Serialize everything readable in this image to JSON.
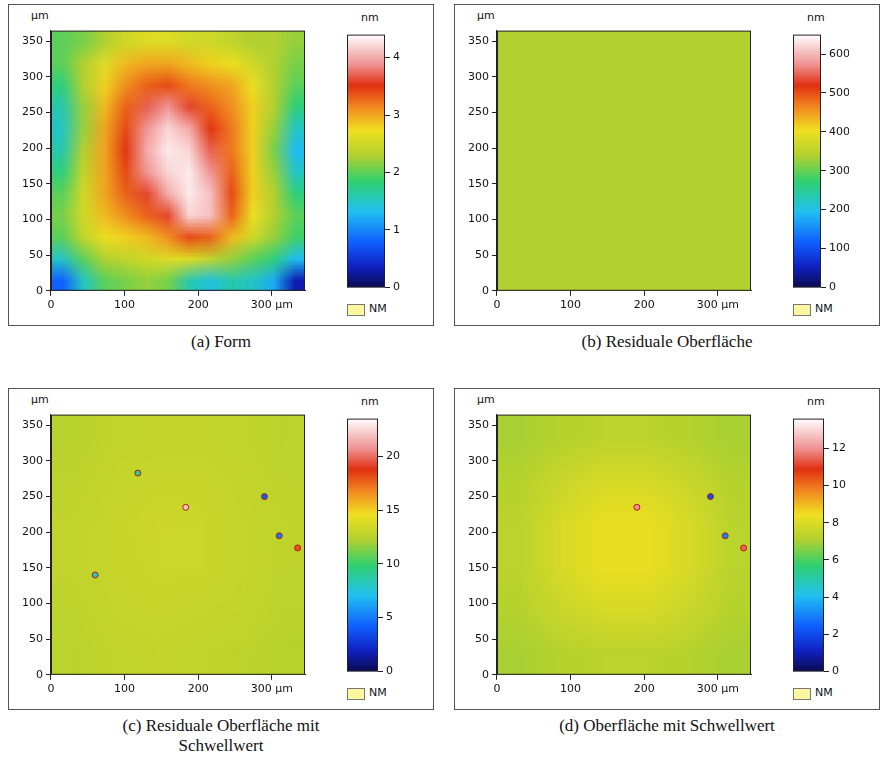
{
  "chart_data": [
    {
      "type": "heatmap",
      "title": "(a) Form",
      "ylabel": "µm",
      "grid": false,
      "xlim": [
        0,
        345
      ],
      "ylim": [
        0,
        365
      ],
      "xticks": [
        0,
        100,
        200,
        {
          "value": 300,
          "label": "300 µm"
        }
      ],
      "yticks": [
        0,
        50,
        100,
        150,
        200,
        250,
        300,
        350
      ],
      "heatmap": {
        "x": [
          14.4,
          43.1,
          71.9,
          100.6,
          129.4,
          158.1,
          186.9,
          215.6,
          244.4,
          273.1,
          301.9,
          330.6
        ],
        "y": [
          15.2,
          45.6,
          76.0,
          106.5,
          136.9,
          167.3,
          197.7,
          228.1,
          258.5,
          289.0,
          319.4,
          349.8
        ],
        "z": [
          [
            0.8,
            1.5,
            2.0,
            2.1,
            2.2,
            2.1,
            1.6,
            1.4,
            1.6,
            1.5,
            1.2,
            0.3
          ],
          [
            1.5,
            2.0,
            2.3,
            2.4,
            2.5,
            2.6,
            2.6,
            2.4,
            2.2,
            2.0,
            1.8,
            1.3
          ],
          [
            2.0,
            2.4,
            2.7,
            2.8,
            2.9,
            3.1,
            3.4,
            3.3,
            2.9,
            2.5,
            2.2,
            1.9
          ],
          [
            2.1,
            2.5,
            2.9,
            3.1,
            3.3,
            3.6,
            4.2,
            4.1,
            3.3,
            2.7,
            2.3,
            2.0
          ],
          [
            2.0,
            2.5,
            3.0,
            3.3,
            3.6,
            4.0,
            4.3,
            4.1,
            3.4,
            2.8,
            2.3,
            1.8
          ],
          [
            1.8,
            2.4,
            3.0,
            3.4,
            3.9,
            4.2,
            4.3,
            3.9,
            3.3,
            2.8,
            2.2,
            1.5
          ],
          [
            1.6,
            2.3,
            3.0,
            3.5,
            4.0,
            4.3,
            4.2,
            3.7,
            3.2,
            2.8,
            2.1,
            1.3
          ],
          [
            1.5,
            2.2,
            3.0,
            3.4,
            3.9,
            4.2,
            4.0,
            3.5,
            3.2,
            2.8,
            2.2,
            1.5
          ],
          [
            1.6,
            2.2,
            2.9,
            3.3,
            3.7,
            3.9,
            3.6,
            3.3,
            3.1,
            2.8,
            2.3,
            1.8
          ],
          [
            1.8,
            2.3,
            2.8,
            3.1,
            3.3,
            3.4,
            3.2,
            3.1,
            3.0,
            2.7,
            2.3,
            2.0
          ],
          [
            2.0,
            2.3,
            2.6,
            2.9,
            3.0,
            3.0,
            2.9,
            2.8,
            2.7,
            2.5,
            2.3,
            2.1
          ],
          [
            2.0,
            2.1,
            2.3,
            2.5,
            2.6,
            2.6,
            2.5,
            2.5,
            2.4,
            2.3,
            2.3,
            2.2
          ]
        ]
      },
      "colorbar": {
        "label": "nm",
        "range": [
          0,
          4.4
        ],
        "ticks": [
          0,
          1,
          2,
          3,
          4
        ]
      },
      "mask": {
        "label": "NM",
        "color": "#fbf7a0"
      }
    },
    {
      "type": "heatmap",
      "title": "(b) Residuale Oberfläche",
      "ylabel": "µm",
      "grid": false,
      "xlim": [
        0,
        345
      ],
      "ylim": [
        0,
        365
      ],
      "xticks": [
        0,
        100,
        200,
        {
          "value": 300,
          "label": "300 µm"
        }
      ],
      "yticks": [
        0,
        50,
        100,
        150,
        200,
        250,
        300,
        350
      ],
      "heatmap": {
        "x": [
          28.8,
          86.3,
          143.8,
          201.3,
          258.8,
          316.3
        ],
        "y": [
          30.4,
          91.3,
          152.1,
          212.9,
          273.8,
          334.6
        ],
        "z": [
          [
            340,
            340,
            340,
            340,
            340,
            340
          ],
          [
            340,
            340,
            340,
            340,
            340,
            340
          ],
          [
            340,
            340,
            340,
            340,
            340,
            340
          ],
          [
            340,
            340,
            340,
            340,
            340,
            340
          ],
          [
            340,
            340,
            340,
            340,
            340,
            340
          ],
          [
            340,
            340,
            340,
            340,
            340,
            340
          ]
        ]
      },
      "colorbar": {
        "label": "nm",
        "range": [
          0,
          650
        ],
        "ticks": [
          0,
          100,
          200,
          300,
          400,
          500,
          600
        ]
      },
      "mask": {
        "label": "NM",
        "color": "#fbf7a0"
      }
    },
    {
      "type": "heatmap",
      "title": "(c) Residuale Oberfläche mit Schwellwert",
      "ylabel": "µm",
      "grid": false,
      "xlim": [
        0,
        345
      ],
      "ylim": [
        0,
        365
      ],
      "xticks": [
        0,
        100,
        200,
        {
          "value": 300,
          "label": "300 µm"
        }
      ],
      "yticks": [
        0,
        50,
        100,
        150,
        200,
        250,
        300,
        350
      ],
      "heatmap": {
        "x": [
          28.8,
          86.3,
          143.8,
          201.3,
          258.8,
          316.3
        ],
        "y": [
          30.4,
          91.3,
          152.1,
          212.9,
          273.8,
          334.6
        ],
        "z": [
          [
            12.6,
            12.8,
            12.9,
            12.8,
            12.7,
            12.5
          ],
          [
            12.7,
            13.0,
            13.1,
            13.0,
            12.9,
            12.6
          ],
          [
            12.8,
            13.1,
            13.2,
            13.2,
            13.0,
            12.7
          ],
          [
            12.8,
            13.1,
            13.3,
            13.2,
            13.0,
            12.8
          ],
          [
            12.7,
            13.0,
            13.1,
            13.1,
            12.9,
            12.7
          ],
          [
            12.5,
            12.8,
            12.9,
            12.9,
            12.8,
            12.6
          ]
        ]
      },
      "spots": {
        "x": [
          183,
          335,
          290,
          310,
          118,
          60
        ],
        "y": [
          235,
          178,
          250,
          195,
          283,
          140
        ],
        "values": [
          22,
          18,
          4,
          5,
          9,
          8
        ]
      },
      "colorbar": {
        "label": "nm",
        "range": [
          0,
          23.5
        ],
        "ticks": [
          0,
          5,
          10,
          15,
          20
        ]
      },
      "mask": {
        "label": "NM",
        "color": "#fbf7a0"
      }
    },
    {
      "type": "heatmap",
      "title": "(d) Oberfläche mit Schwellwert",
      "ylabel": "µm",
      "grid": false,
      "xlim": [
        0,
        345
      ],
      "ylim": [
        0,
        365
      ],
      "xticks": [
        0,
        100,
        200,
        {
          "value": 300,
          "label": "300 µm"
        }
      ],
      "yticks": [
        0,
        50,
        100,
        150,
        200,
        250,
        300,
        350
      ],
      "heatmap": {
        "x": [
          28.8,
          86.3,
          143.8,
          201.3,
          258.8,
          316.3
        ],
        "y": [
          30.4,
          91.3,
          152.1,
          212.9,
          273.8,
          334.6
        ],
        "z": [
          [
            7.0,
            7.2,
            7.3,
            7.3,
            7.2,
            7.0
          ],
          [
            7.2,
            7.6,
            7.9,
            7.9,
            7.6,
            7.2
          ],
          [
            7.3,
            7.9,
            8.3,
            8.3,
            7.9,
            7.3
          ],
          [
            7.3,
            7.9,
            8.3,
            8.3,
            7.9,
            7.3
          ],
          [
            7.2,
            7.6,
            7.9,
            7.9,
            7.6,
            7.2
          ],
          [
            7.0,
            7.2,
            7.3,
            7.3,
            7.2,
            7.0
          ]
        ]
      },
      "spots": {
        "x": [
          190,
          335,
          290,
          310
        ],
        "y": [
          235,
          178,
          250,
          195
        ],
        "values": [
          12,
          11.5,
          2,
          3
        ]
      },
      "colorbar": {
        "label": "nm",
        "range": [
          0,
          13.6
        ],
        "ticks": [
          0,
          2,
          4,
          6,
          8,
          10,
          12
        ]
      },
      "mask": {
        "label": "NM",
        "color": "#fbf7a0"
      }
    }
  ]
}
